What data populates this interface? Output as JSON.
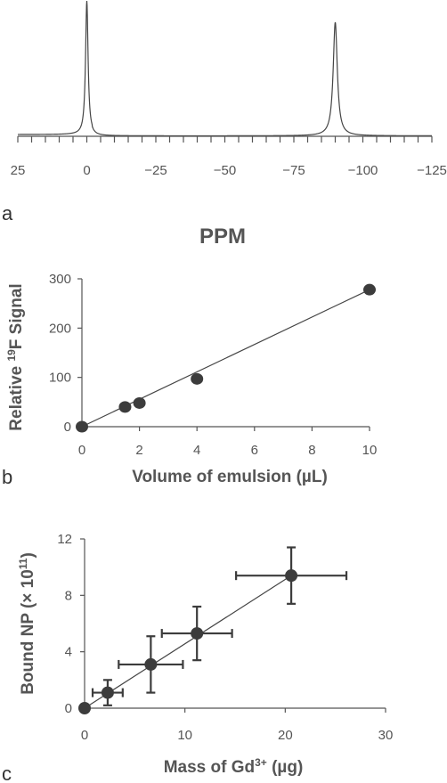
{
  "chart_data": [
    {
      "type": "line",
      "panel": "a",
      "xlabel": "PPM",
      "xlim": [
        25,
        -125
      ],
      "xticks": [
        25,
        0,
        -25,
        -50,
        -75,
        -100,
        -125
      ],
      "tick_labels": [
        "25",
        "0",
        "−25",
        "−50",
        "−75",
        "−100",
        "−125"
      ],
      "peaks": [
        {
          "ppm": 0,
          "relative_height": 1.0
        },
        {
          "ppm": -90,
          "relative_height": 0.85
        }
      ]
    },
    {
      "type": "scatter",
      "panel": "b",
      "xlabel": "Volume of emulsion (µL)",
      "ylabel_pre": "Relative ",
      "ylabel_sup": "19",
      "ylabel_post": "F Signal",
      "xlim": [
        0,
        10
      ],
      "ylim": [
        0,
        300
      ],
      "xticks": [
        0,
        2,
        4,
        6,
        8,
        10
      ],
      "yticks": [
        0,
        100,
        200,
        300
      ],
      "points": [
        {
          "x": 0,
          "y": 0
        },
        {
          "x": 1.5,
          "y": 40
        },
        {
          "x": 2,
          "y": 48
        },
        {
          "x": 4,
          "y": 97
        },
        {
          "x": 10,
          "y": 278
        }
      ],
      "fit_line": [
        [
          0,
          0
        ],
        [
          10,
          278
        ]
      ]
    },
    {
      "type": "scatter",
      "panel": "c",
      "xlabel_pre": "Mass of Gd",
      "xlabel_sup": "3+",
      "xlabel_post": " (µg)",
      "ylabel_pre": "Bound NP (× 10",
      "ylabel_sup": "11",
      "ylabel_post": ")",
      "xlim": [
        0,
        30
      ],
      "ylim": [
        0,
        12
      ],
      "xticks": [
        0,
        10,
        20,
        30
      ],
      "yticks": [
        0,
        4,
        8,
        12
      ],
      "points": [
        {
          "x": 0,
          "y": 0,
          "xerr": 0,
          "yerr": 0
        },
        {
          "x": 2.3,
          "y": 1.1,
          "xerr": 1.5,
          "yerr": 0.9
        },
        {
          "x": 6.6,
          "y": 3.1,
          "xerr": 3.2,
          "yerr": 2.0
        },
        {
          "x": 11.2,
          "y": 5.3,
          "xerr": 3.5,
          "yerr": 1.9
        },
        {
          "x": 20.6,
          "y": 9.4,
          "xerr": 5.5,
          "yerr": 2.0
        }
      ],
      "fit_line": [
        [
          0,
          0
        ],
        [
          20.6,
          9.4
        ]
      ]
    }
  ],
  "panel_letters": {
    "a": "a",
    "b": "b",
    "c": "c"
  }
}
